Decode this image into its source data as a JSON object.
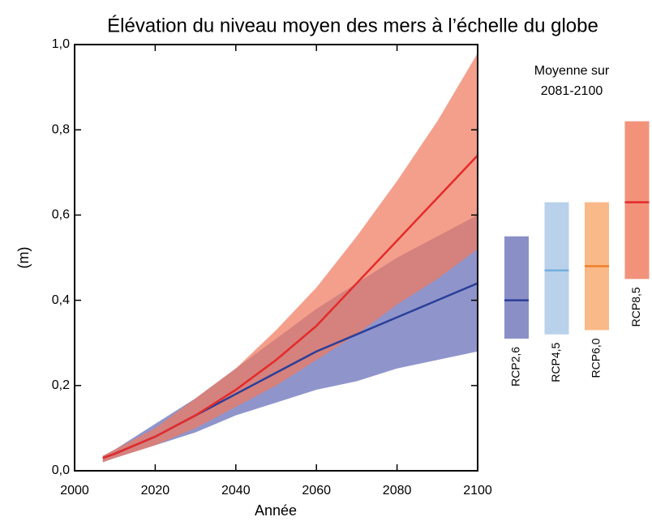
{
  "chart_data": [
    {
      "type": "band-line",
      "title": "Élévation du niveau moyen des mers à l’échelle du globe",
      "x_label": "Année",
      "y_label": "(m)",
      "x": [
        2007,
        2010,
        2020,
        2030,
        2040,
        2050,
        2060,
        2070,
        2080,
        2090,
        2100
      ],
      "series": [
        {
          "color": "#2b3f99",
          "band_color": "#8f95cb",
          "values": [
            0.03,
            0.04,
            0.08,
            0.13,
            0.18,
            0.23,
            0.28,
            0.32,
            0.36,
            0.4,
            0.44
          ],
          "low": [
            0.02,
            0.03,
            0.06,
            0.09,
            0.13,
            0.16,
            0.19,
            0.21,
            0.24,
            0.26,
            0.28
          ],
          "high": [
            0.035,
            0.05,
            0.11,
            0.17,
            0.24,
            0.31,
            0.38,
            0.44,
            0.5,
            0.55,
            0.6
          ]
        },
        {
          "color": "#e52a2a",
          "band_color": "#f07a5e",
          "values": [
            0.03,
            0.04,
            0.08,
            0.13,
            0.19,
            0.26,
            0.34,
            0.44,
            0.54,
            0.64,
            0.74
          ],
          "low": [
            0.02,
            0.03,
            0.06,
            0.1,
            0.15,
            0.2,
            0.26,
            0.32,
            0.39,
            0.45,
            0.52
          ],
          "high": [
            0.035,
            0.05,
            0.1,
            0.17,
            0.24,
            0.33,
            0.43,
            0.55,
            0.68,
            0.82,
            0.98
          ]
        }
      ],
      "xlim": [
        2000,
        2100
      ],
      "xticks": [
        2000,
        2020,
        2040,
        2060,
        2080,
        2100
      ],
      "ylim": [
        0,
        1
      ],
      "yticks": [
        {
          "value": 0,
          "label": "0,0"
        },
        {
          "value": 0.2,
          "label": "0,2"
        },
        {
          "value": 0.4,
          "label": "0,4"
        },
        {
          "value": 0.6,
          "label": "0,6"
        },
        {
          "value": 0.8,
          "label": "0,8"
        },
        {
          "value": 1,
          "label": "1,0"
        }
      ]
    },
    {
      "type": "range-bar",
      "title": [
        "Moyenne sur",
        "2081-2100"
      ],
      "categories": [
        "RCP2,6",
        "RCP4,5",
        "RCP6,0",
        "RCP8,5"
      ],
      "low": [
        0.31,
        0.32,
        0.33,
        0.45
      ],
      "high": [
        0.55,
        0.63,
        0.63,
        0.82
      ],
      "values": [
        0.4,
        0.47,
        0.48,
        0.63
      ],
      "colors": [
        "#8a8fc6",
        "#b9d1ea",
        "#f9b988",
        "#f2927a"
      ],
      "line_colors": [
        "#2b3f99",
        "#75b0e0",
        "#f07f2a",
        "#e52a2a"
      ],
      "ylim": [
        0,
        1
      ]
    }
  ]
}
